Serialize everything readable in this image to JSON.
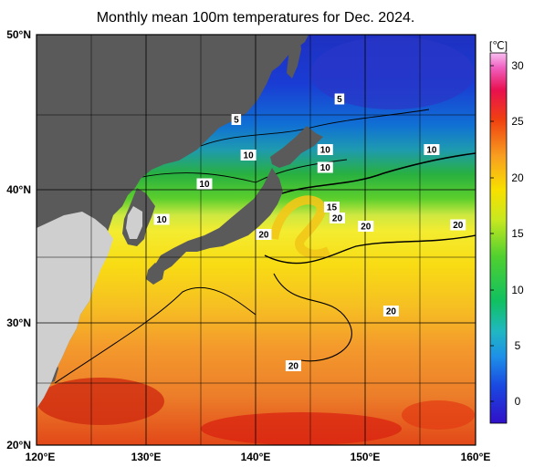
{
  "title": "Monthly mean 100m temperatures for Dec. 2024.",
  "colorbar": {
    "unit": "[℃]",
    "ticks": [
      "30",
      "25",
      "20",
      "15",
      "10",
      "5",
      "0"
    ],
    "min": -2,
    "max": 31
  },
  "axes": {
    "lat_labels": [
      "50°N",
      "40°N",
      "30°N",
      "20°N"
    ],
    "lon_labels": [
      "120°E",
      "130°E",
      "140°E",
      "150°E",
      "160°E"
    ],
    "lat_range": [
      20,
      50
    ],
    "lon_range": [
      120,
      160
    ],
    "grid": true
  },
  "colors": {
    "land_dark": "#5a5a5a",
    "land_light": "#cfcfcf"
  },
  "contour_labels": [
    {
      "text": "5",
      "lon": 138.2,
      "lat": 43.8
    },
    {
      "text": "5",
      "lon": 147.6,
      "lat": 45.3
    },
    {
      "text": "10",
      "lon": 139.3,
      "lat": 41.2
    },
    {
      "text": "10",
      "lon": 146.3,
      "lat": 41.6
    },
    {
      "text": "10",
      "lon": 146.3,
      "lat": 40.3
    },
    {
      "text": "10",
      "lon": 156.0,
      "lat": 41.6
    },
    {
      "text": "10",
      "lon": 135.3,
      "lat": 39.1
    },
    {
      "text": "10",
      "lon": 131.4,
      "lat": 36.5
    },
    {
      "text": "15",
      "lon": 146.9,
      "lat": 37.4
    },
    {
      "text": "20",
      "lon": 147.4,
      "lat": 36.6
    },
    {
      "text": "20",
      "lon": 150.0,
      "lat": 36.0
    },
    {
      "text": "20",
      "lon": 158.4,
      "lat": 36.1
    },
    {
      "text": "20",
      "lon": 140.7,
      "lat": 35.4
    },
    {
      "text": "20",
      "lon": 152.3,
      "lat": 29.8
    },
    {
      "text": "20",
      "lon": 143.4,
      "lat": 25.8
    }
  ]
}
